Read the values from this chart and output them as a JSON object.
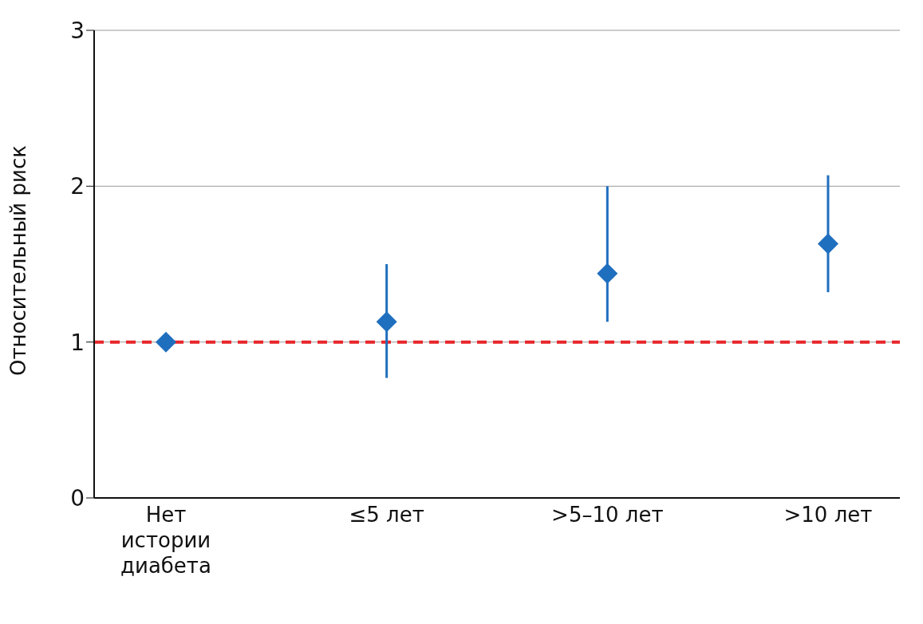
{
  "chart_data": {
    "type": "scatter",
    "ylabel": "Относительный риск",
    "categories": [
      "Нет истории диабета",
      "≤5 лет",
      ">5–10 лет",
      ">10 лет"
    ],
    "series": [
      {
        "color": "#1f6fbf",
        "values": [
          1.0,
          1.13,
          1.44,
          1.63
        ],
        "errors": [
          null,
          [
            0.77,
            1.5
          ],
          [
            1.13,
            2.0
          ],
          [
            1.32,
            2.07
          ]
        ]
      }
    ],
    "marker": "diamond",
    "ylim": [
      0,
      3
    ],
    "yticks": [
      0,
      1,
      2,
      3
    ],
    "grid": "y",
    "ref_lines": [
      {
        "axis": "y",
        "value": 1,
        "color": "#e8262b",
        "line_style": "dashed"
      }
    ]
  }
}
